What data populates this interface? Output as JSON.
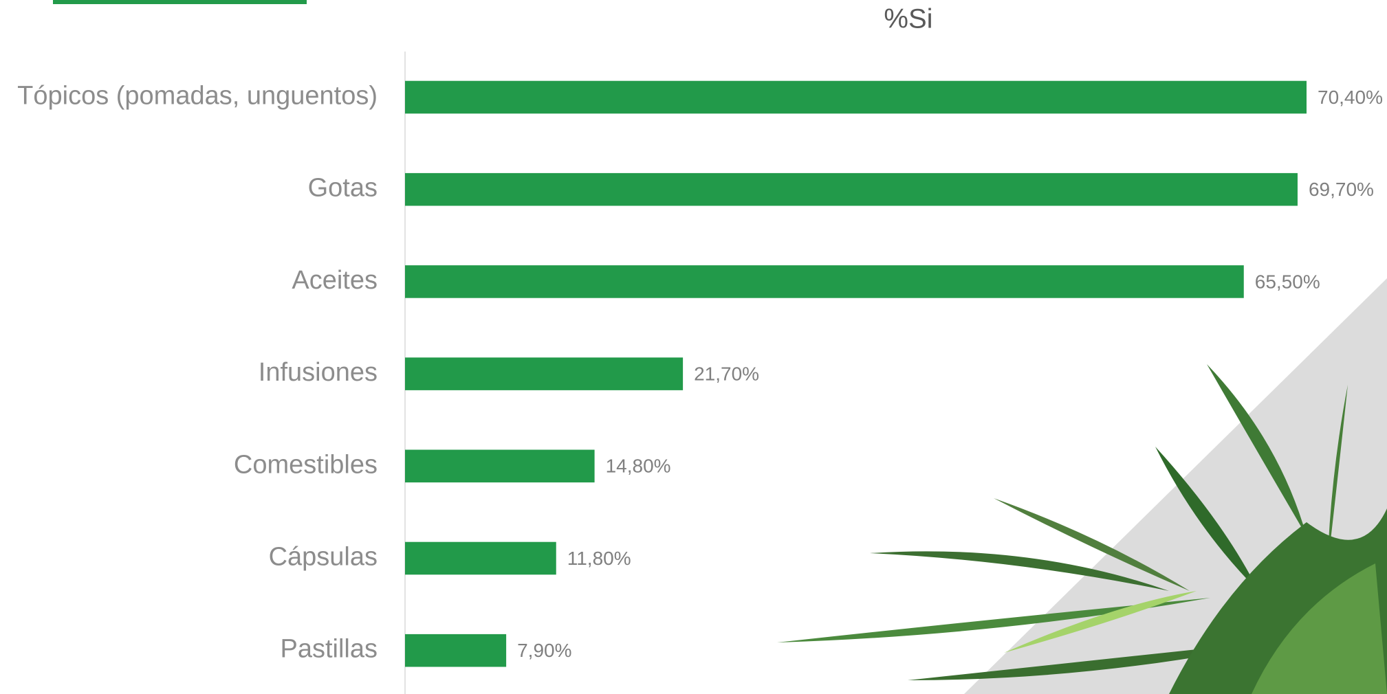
{
  "chart_data": {
    "type": "bar",
    "orientation": "horizontal",
    "title": "%Si",
    "categories": [
      "Tópicos (pomadas, unguentos)",
      "Gotas",
      "Aceites",
      "Infusiones",
      "Comestibles",
      "Cápsulas",
      "Pastillas"
    ],
    "values": [
      70.4,
      69.7,
      65.5,
      21.7,
      14.8,
      11.8,
      7.9
    ],
    "value_labels": [
      "70,40%",
      "69,70%",
      "65,50%",
      "21,70%",
      "14,80%",
      "11,80%",
      "7,90%"
    ],
    "color": "#229a4a"
  }
}
